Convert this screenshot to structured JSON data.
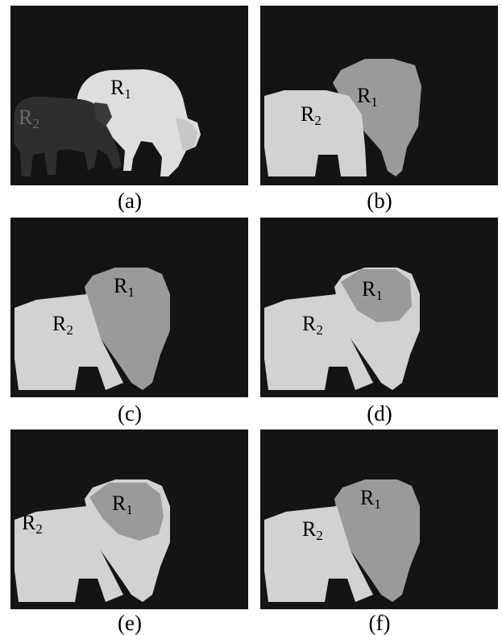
{
  "panels": [
    {
      "caption": "(a)",
      "region_1": "R",
      "region_1_sub": "1",
      "region_2": "R",
      "region_2_sub": "2"
    },
    {
      "caption": "(b)",
      "region_1": "R",
      "region_1_sub": "1",
      "region_2": "R",
      "region_2_sub": "2"
    },
    {
      "caption": "(c)",
      "region_1": "R",
      "region_1_sub": "1",
      "region_2": "R",
      "region_2_sub": "2"
    },
    {
      "caption": "(d)",
      "region_1": "R",
      "region_1_sub": "1",
      "region_2": "R",
      "region_2_sub": "2"
    },
    {
      "caption": "(e)",
      "region_1": "R",
      "region_1_sub": "1",
      "region_2": "R",
      "region_2_sub": "2"
    },
    {
      "caption": "(f)",
      "region_1": "R",
      "region_1_sub": "1",
      "region_2": "R",
      "region_2_sub": "2"
    }
  ],
  "colors": {
    "background": "#141414",
    "region_1_fill": "#9a9a9a",
    "region_2_fill": "#d2d2d2",
    "photo_dark_cow": "#2e2e2e",
    "photo_light_cow": "#dcdcdc"
  }
}
